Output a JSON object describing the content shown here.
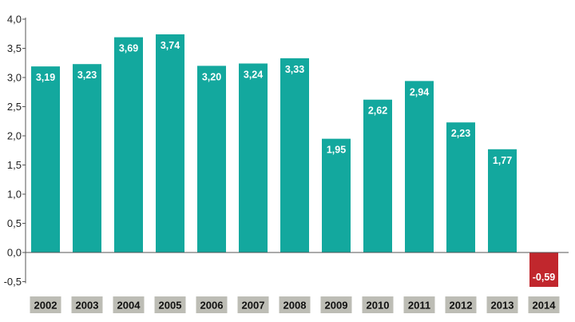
{
  "chart_data": {
    "type": "bar",
    "title": "",
    "xlabel": "",
    "ylabel": "",
    "categories": [
      "2002",
      "2003",
      "2004",
      "2005",
      "2006",
      "2007",
      "2008",
      "2009",
      "2010",
      "2011",
      "2012",
      "2013",
      "2014"
    ],
    "values": [
      3.19,
      3.23,
      3.69,
      3.74,
      3.2,
      3.24,
      3.33,
      1.95,
      2.62,
      2.94,
      2.23,
      1.77,
      -0.59
    ],
    "value_labels": [
      "3,19",
      "3,23",
      "3,69",
      "3,74",
      "3,20",
      "3,24",
      "3,33",
      "1,95",
      "2,62",
      "2,94",
      "2,23",
      "1,77",
      "-0,59"
    ],
    "ylim": [
      -0.5,
      4.0
    ],
    "yticks": [
      4.0,
      3.5,
      3.0,
      2.5,
      2.0,
      1.5,
      1.0,
      0.5,
      0.0,
      -0.5
    ],
    "ytick_labels": [
      "4,0",
      "3,5",
      "3,0",
      "2,5",
      "2,0",
      "1,5",
      "1,0",
      "0,5",
      "0,0",
      "-0,5"
    ],
    "grid": false,
    "colors": {
      "positive": "#13a89e",
      "negative": "#c1272d",
      "year_box": "#bdbdb5",
      "axis": "#555555",
      "gridline": "#cfcfcf"
    }
  }
}
